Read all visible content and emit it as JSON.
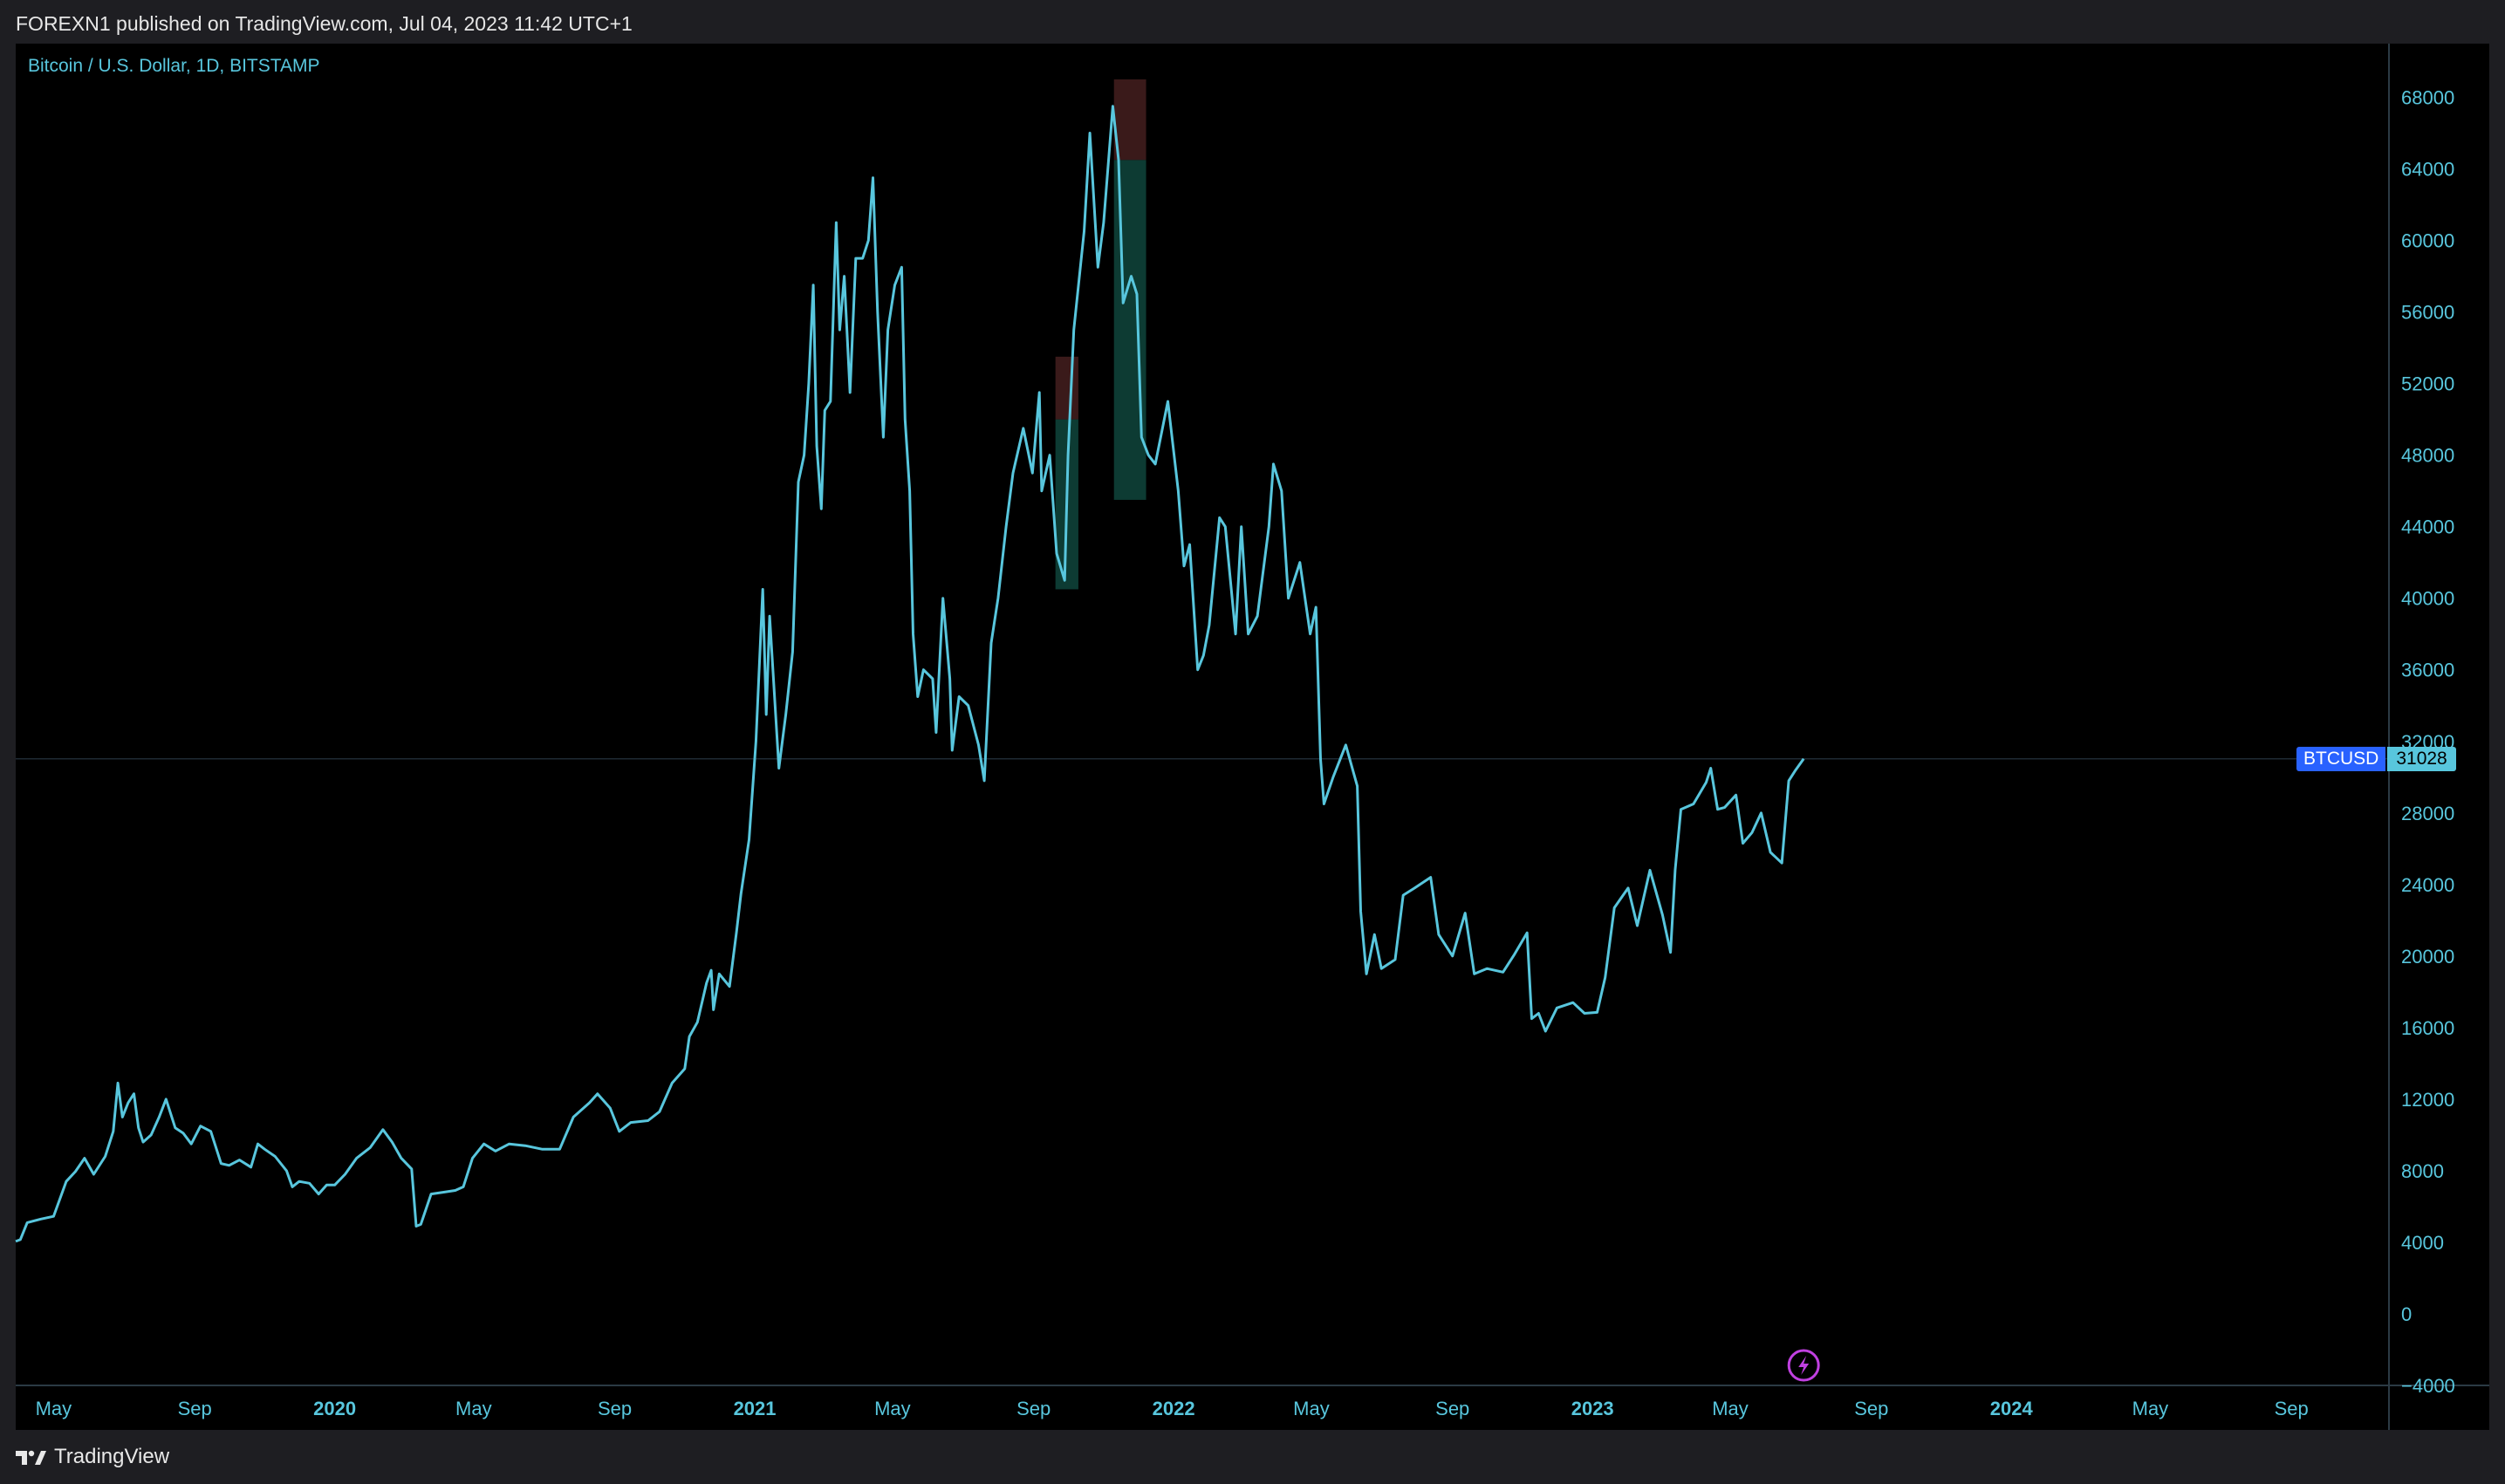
{
  "header": {
    "published_line": "FOREXN1 published on TradingView.com, Jul 04, 2023 11:42 UTC+1"
  },
  "footer": {
    "brand": "TradingView"
  },
  "colors": {
    "line": "#58c6dd",
    "background": "#000000",
    "axis_text": "#58c6dd",
    "grid": "#2a2e39",
    "label_bg": "#2962ff",
    "bull_box": "#0d3b33",
    "bear_box": "#3a1a1a",
    "lightning": "#c040e0"
  },
  "chart_data": {
    "type": "line",
    "title": "Bitcoin / U.S. Dollar, 1D, BITSTAMP",
    "symbol": "BTCUSD",
    "last_price_label": "31028",
    "last_price": 31028,
    "ylim": [
      -4000,
      71000
    ],
    "y_ticks": [
      -4000,
      0,
      4000,
      8000,
      12000,
      16000,
      20000,
      24000,
      28000,
      32000,
      36000,
      40000,
      44000,
      48000,
      52000,
      56000,
      60000,
      64000,
      68000
    ],
    "y_tick_labels": [
      "−4000",
      "0",
      "4000",
      "8000",
      "12000",
      "16000",
      "20000",
      "24000",
      "28000",
      "32000",
      "36000",
      "40000",
      "44000",
      "48000",
      "52000",
      "56000",
      "60000",
      "64000",
      "68000"
    ],
    "xlim": [
      "2019-03-29",
      "2024-11-25"
    ],
    "x_ticks": [
      {
        "date": "2019-05-01",
        "label": "May",
        "bold": false
      },
      {
        "date": "2019-09-01",
        "label": "Sep",
        "bold": false
      },
      {
        "date": "2020-01-01",
        "label": "2020",
        "bold": true
      },
      {
        "date": "2020-05-01",
        "label": "May",
        "bold": false
      },
      {
        "date": "2020-09-01",
        "label": "Sep",
        "bold": false
      },
      {
        "date": "2021-01-01",
        "label": "2021",
        "bold": true
      },
      {
        "date": "2021-05-01",
        "label": "May",
        "bold": false
      },
      {
        "date": "2021-09-01",
        "label": "Sep",
        "bold": false
      },
      {
        "date": "2022-01-01",
        "label": "2022",
        "bold": true
      },
      {
        "date": "2022-05-01",
        "label": "May",
        "bold": false
      },
      {
        "date": "2022-09-01",
        "label": "Sep",
        "bold": false
      },
      {
        "date": "2023-01-01",
        "label": "2023",
        "bold": true
      },
      {
        "date": "2023-05-01",
        "label": "May",
        "bold": false
      },
      {
        "date": "2023-09-01",
        "label": "Sep",
        "bold": false
      },
      {
        "date": "2024-01-01",
        "label": "2024",
        "bold": true
      },
      {
        "date": "2024-05-01",
        "label": "May",
        "bold": false
      },
      {
        "date": "2024-09-01",
        "label": "Sep",
        "bold": false
      }
    ],
    "series": [
      {
        "values": [
          [
            "2019-03-29",
            4050
          ],
          [
            "2019-04-02",
            4150
          ],
          [
            "2019-04-08",
            5100
          ],
          [
            "2019-04-20",
            5300
          ],
          [
            "2019-05-01",
            5450
          ],
          [
            "2019-05-12",
            7400
          ],
          [
            "2019-05-20",
            7950
          ],
          [
            "2019-05-28",
            8700
          ],
          [
            "2019-06-05",
            7800
          ],
          [
            "2019-06-15",
            8800
          ],
          [
            "2019-06-22",
            10200
          ],
          [
            "2019-06-26",
            12900
          ],
          [
            "2019-06-30",
            11000
          ],
          [
            "2019-07-05",
            11800
          ],
          [
            "2019-07-10",
            12300
          ],
          [
            "2019-07-14",
            10400
          ],
          [
            "2019-07-18",
            9600
          ],
          [
            "2019-07-25",
            10000
          ],
          [
            "2019-08-01",
            11000
          ],
          [
            "2019-08-07",
            12000
          ],
          [
            "2019-08-15",
            10400
          ],
          [
            "2019-08-22",
            10100
          ],
          [
            "2019-08-29",
            9500
          ],
          [
            "2019-09-06",
            10500
          ],
          [
            "2019-09-15",
            10200
          ],
          [
            "2019-09-24",
            8400
          ],
          [
            "2019-10-01",
            8300
          ],
          [
            "2019-10-10",
            8600
          ],
          [
            "2019-10-20",
            8200
          ],
          [
            "2019-10-26",
            9500
          ],
          [
            "2019-11-01",
            9200
          ],
          [
            "2019-11-10",
            8800
          ],
          [
            "2019-11-20",
            8000
          ],
          [
            "2019-11-25",
            7100
          ],
          [
            "2019-12-01",
            7400
          ],
          [
            "2019-12-10",
            7300
          ],
          [
            "2019-12-18",
            6700
          ],
          [
            "2019-12-25",
            7200
          ],
          [
            "2020-01-01",
            7200
          ],
          [
            "2020-01-10",
            7800
          ],
          [
            "2020-01-20",
            8700
          ],
          [
            "2020-02-01",
            9300
          ],
          [
            "2020-02-12",
            10300
          ],
          [
            "2020-02-20",
            9600
          ],
          [
            "2020-02-28",
            8700
          ],
          [
            "2020-03-08",
            8100
          ],
          [
            "2020-03-12",
            4900
          ],
          [
            "2020-03-16",
            5000
          ],
          [
            "2020-03-25",
            6700
          ],
          [
            "2020-04-05",
            6800
          ],
          [
            "2020-04-15",
            6900
          ],
          [
            "2020-04-22",
            7100
          ],
          [
            "2020-04-30",
            8700
          ],
          [
            "2020-05-10",
            9500
          ],
          [
            "2020-05-20",
            9100
          ],
          [
            "2020-06-01",
            9500
          ],
          [
            "2020-06-15",
            9400
          ],
          [
            "2020-06-30",
            9200
          ],
          [
            "2020-07-15",
            9200
          ],
          [
            "2020-07-27",
            11000
          ],
          [
            "2020-08-10",
            11800
          ],
          [
            "2020-08-17",
            12300
          ],
          [
            "2020-08-28",
            11500
          ],
          [
            "2020-09-05",
            10200
          ],
          [
            "2020-09-15",
            10700
          ],
          [
            "2020-09-30",
            10800
          ],
          [
            "2020-10-10",
            11300
          ],
          [
            "2020-10-21",
            12900
          ],
          [
            "2020-11-01",
            13700
          ],
          [
            "2020-11-05",
            15500
          ],
          [
            "2020-11-12",
            16300
          ],
          [
            "2020-11-20",
            18500
          ],
          [
            "2020-11-24",
            19200
          ],
          [
            "2020-11-26",
            17000
          ],
          [
            "2020-12-01",
            19000
          ],
          [
            "2020-12-10",
            18300
          ],
          [
            "2020-12-16",
            21300
          ],
          [
            "2020-12-20",
            23500
          ],
          [
            "2020-12-27",
            26500
          ],
          [
            "2021-01-02",
            32000
          ],
          [
            "2021-01-08",
            40500
          ],
          [
            "2021-01-11",
            33500
          ],
          [
            "2021-01-14",
            39000
          ],
          [
            "2021-01-22",
            30500
          ],
          [
            "2021-01-28",
            33500
          ],
          [
            "2021-02-03",
            37000
          ],
          [
            "2021-02-08",
            46500
          ],
          [
            "2021-02-13",
            48000
          ],
          [
            "2021-02-17",
            52000
          ],
          [
            "2021-02-21",
            57500
          ],
          [
            "2021-02-24",
            48500
          ],
          [
            "2021-02-28",
            45000
          ],
          [
            "2021-03-03",
            50500
          ],
          [
            "2021-03-08",
            51000
          ],
          [
            "2021-03-13",
            61000
          ],
          [
            "2021-03-16",
            55000
          ],
          [
            "2021-03-20",
            58000
          ],
          [
            "2021-03-25",
            51500
          ],
          [
            "2021-03-30",
            59000
          ],
          [
            "2021-04-05",
            59000
          ],
          [
            "2021-04-10",
            60000
          ],
          [
            "2021-04-14",
            63500
          ],
          [
            "2021-04-18",
            56000
          ],
          [
            "2021-04-23",
            49000
          ],
          [
            "2021-04-27",
            55000
          ],
          [
            "2021-05-03",
            57500
          ],
          [
            "2021-05-09",
            58500
          ],
          [
            "2021-05-12",
            50000
          ],
          [
            "2021-05-16",
            46000
          ],
          [
            "2021-05-19",
            38000
          ],
          [
            "2021-05-23",
            34500
          ],
          [
            "2021-05-28",
            36000
          ],
          [
            "2021-06-05",
            35500
          ],
          [
            "2021-06-08",
            32500
          ],
          [
            "2021-06-14",
            40000
          ],
          [
            "2021-06-20",
            35500
          ],
          [
            "2021-06-22",
            31500
          ],
          [
            "2021-06-28",
            34500
          ],
          [
            "2021-07-06",
            34000
          ],
          [
            "2021-07-15",
            31800
          ],
          [
            "2021-07-20",
            29800
          ],
          [
            "2021-07-26",
            37500
          ],
          [
            "2021-08-01",
            40000
          ],
          [
            "2021-08-08",
            44000
          ],
          [
            "2021-08-14",
            47000
          ],
          [
            "2021-08-23",
            49500
          ],
          [
            "2021-08-31",
            47000
          ],
          [
            "2021-09-06",
            51500
          ],
          [
            "2021-09-08",
            46000
          ],
          [
            "2021-09-15",
            48000
          ],
          [
            "2021-09-21",
            42500
          ],
          [
            "2021-09-28",
            41000
          ],
          [
            "2021-10-01",
            48000
          ],
          [
            "2021-10-06",
            55000
          ],
          [
            "2021-10-15",
            60500
          ],
          [
            "2021-10-20",
            66000
          ],
          [
            "2021-10-27",
            58500
          ],
          [
            "2021-11-01",
            61000
          ],
          [
            "2021-11-09",
            67500
          ],
          [
            "2021-11-14",
            64500
          ],
          [
            "2021-11-18",
            56500
          ],
          [
            "2021-11-25",
            58000
          ],
          [
            "2021-11-30",
            57000
          ],
          [
            "2021-12-04",
            49000
          ],
          [
            "2021-12-10",
            48000
          ],
          [
            "2021-12-16",
            47500
          ],
          [
            "2021-12-27",
            51000
          ],
          [
            "2022-01-05",
            46000
          ],
          [
            "2022-01-10",
            41800
          ],
          [
            "2022-01-15",
            43000
          ],
          [
            "2022-01-22",
            36000
          ],
          [
            "2022-01-27",
            36800
          ],
          [
            "2022-02-01",
            38500
          ],
          [
            "2022-02-10",
            44500
          ],
          [
            "2022-02-15",
            44000
          ],
          [
            "2022-02-24",
            38000
          ],
          [
            "2022-03-01",
            44000
          ],
          [
            "2022-03-07",
            38000
          ],
          [
            "2022-03-15",
            39000
          ],
          [
            "2022-03-25",
            44000
          ],
          [
            "2022-03-29",
            47500
          ],
          [
            "2022-04-05",
            46000
          ],
          [
            "2022-04-11",
            40000
          ],
          [
            "2022-04-21",
            42000
          ],
          [
            "2022-04-30",
            38000
          ],
          [
            "2022-05-05",
            39500
          ],
          [
            "2022-05-09",
            31000
          ],
          [
            "2022-05-12",
            28500
          ],
          [
            "2022-05-20",
            30000
          ],
          [
            "2022-05-31",
            31800
          ],
          [
            "2022-06-10",
            29500
          ],
          [
            "2022-06-13",
            22500
          ],
          [
            "2022-06-18",
            19000
          ],
          [
            "2022-06-25",
            21200
          ],
          [
            "2022-07-01",
            19300
          ],
          [
            "2022-07-13",
            19800
          ],
          [
            "2022-07-20",
            23400
          ],
          [
            "2022-07-30",
            23800
          ],
          [
            "2022-08-13",
            24400
          ],
          [
            "2022-08-20",
            21200
          ],
          [
            "2022-09-01",
            20000
          ],
          [
            "2022-09-12",
            22400
          ],
          [
            "2022-09-20",
            19000
          ],
          [
            "2022-10-01",
            19300
          ],
          [
            "2022-10-15",
            19100
          ],
          [
            "2022-10-25",
            20100
          ],
          [
            "2022-11-05",
            21300
          ],
          [
            "2022-11-09",
            16500
          ],
          [
            "2022-11-15",
            16800
          ],
          [
            "2022-11-21",
            15800
          ],
          [
            "2022-12-01",
            17100
          ],
          [
            "2022-12-15",
            17400
          ],
          [
            "2022-12-25",
            16800
          ],
          [
            "2023-01-05",
            16850
          ],
          [
            "2023-01-12",
            18800
          ],
          [
            "2023-01-20",
            22700
          ],
          [
            "2023-02-01",
            23800
          ],
          [
            "2023-02-09",
            21700
          ],
          [
            "2023-02-20",
            24800
          ],
          [
            "2023-03-03",
            22300
          ],
          [
            "2023-03-10",
            20200
          ],
          [
            "2023-03-14",
            24800
          ],
          [
            "2023-03-19",
            28200
          ],
          [
            "2023-03-30",
            28500
          ],
          [
            "2023-04-10",
            29700
          ],
          [
            "2023-04-14",
            30500
          ],
          [
            "2023-04-20",
            28200
          ],
          [
            "2023-04-26",
            28300
          ],
          [
            "2023-05-06",
            29000
          ],
          [
            "2023-05-12",
            26300
          ],
          [
            "2023-05-20",
            26900
          ],
          [
            "2023-05-28",
            28000
          ],
          [
            "2023-06-05",
            25800
          ],
          [
            "2023-06-15",
            25200
          ],
          [
            "2023-06-21",
            29800
          ],
          [
            "2023-06-27",
            30400
          ],
          [
            "2023-07-04",
            31028
          ]
        ]
      }
    ],
    "boxes": [
      {
        "x0": "2021-09-20",
        "x1": "2021-10-10",
        "y0": 40500,
        "y1": 50000,
        "kind": "long"
      },
      {
        "x0": "2021-09-20",
        "x1": "2021-10-10",
        "y0": 50000,
        "y1": 53500,
        "kind": "short"
      },
      {
        "x0": "2021-11-10",
        "x1": "2021-12-08",
        "y0": 45500,
        "y1": 64500,
        "kind": "long"
      },
      {
        "x0": "2021-11-10",
        "x1": "2021-12-08",
        "y0": 64500,
        "y1": 69000,
        "kind": "short"
      }
    ]
  }
}
